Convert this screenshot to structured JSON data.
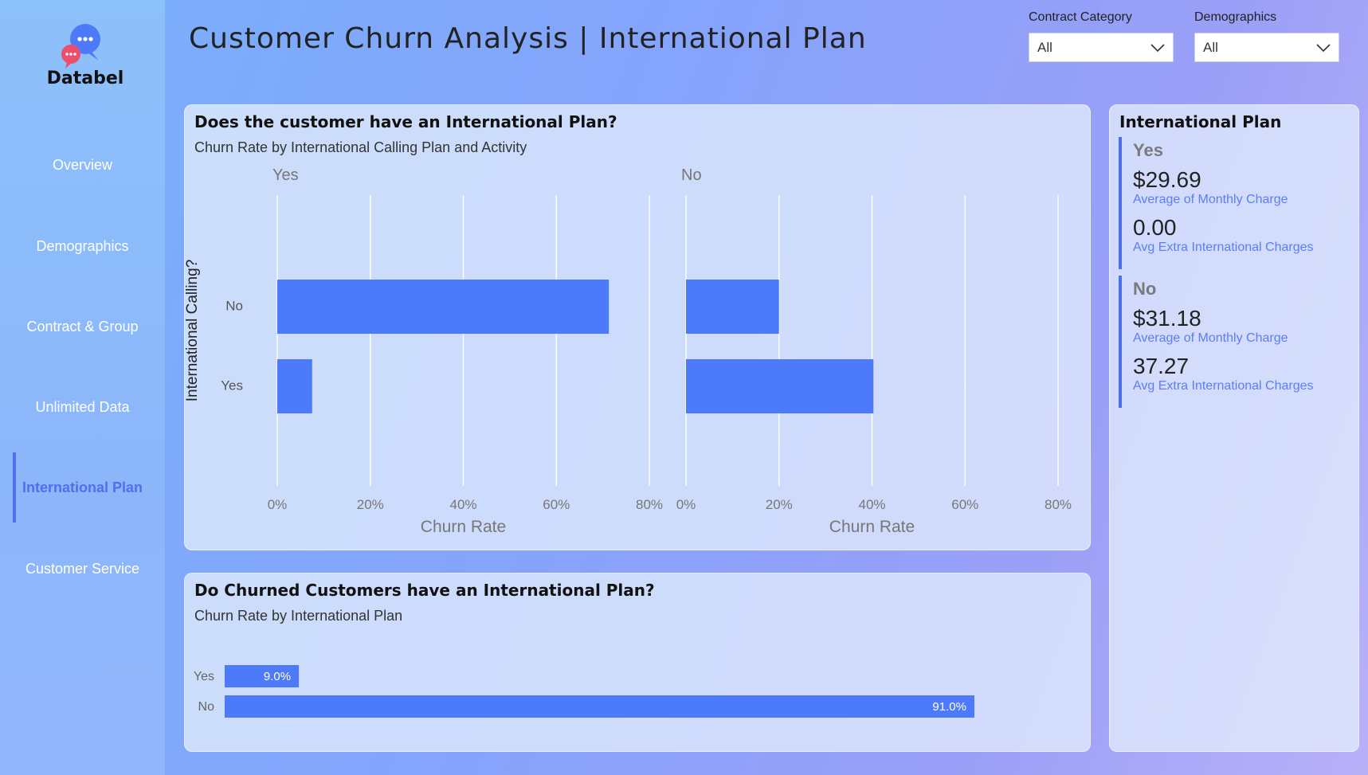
{
  "brand": {
    "name": "Databel"
  },
  "nav": {
    "items": [
      {
        "label": "Overview"
      },
      {
        "label": "Demographics"
      },
      {
        "label": "Contract & Group"
      },
      {
        "label": "Unlimited Data"
      },
      {
        "label": "International Plan",
        "active": true
      },
      {
        "label": "Customer Service"
      }
    ]
  },
  "header": {
    "title": "Customer Churn Analysis | International Plan"
  },
  "filters": {
    "contract": {
      "label": "Contract Category",
      "value": "All"
    },
    "demographics": {
      "label": "Demographics",
      "value": "All"
    }
  },
  "chart1": {
    "title": "Does the customer have an International Plan?",
    "subtitle": "Churn Rate by International Calling Plan and Activity"
  },
  "chart2": {
    "title": "Do Churned Customers have an International Plan?",
    "subtitle": "Churn Rate by International Plan"
  },
  "kpi": {
    "title": "International Plan",
    "groups": [
      {
        "name": "Yes",
        "avg_monthly": "$29.69",
        "avg_monthly_label": "Average of Monthly Charge",
        "avg_intl": "0.00",
        "avg_intl_label": "Avg Extra International Charges"
      },
      {
        "name": "No",
        "avg_monthly": "$31.18",
        "avg_monthly_label": "Average of Monthly Charge",
        "avg_intl": "37.27",
        "avg_intl_label": "Avg Extra International Charges"
      }
    ]
  },
  "colors": {
    "accent": "#4f6fef",
    "bar": "#4d7af8"
  },
  "chart_data": [
    {
      "type": "bar",
      "orientation": "horizontal",
      "title": "Does the customer have an International Plan?",
      "subtitle": "Churn Rate by International Calling Plan and Activity",
      "ylabel": "International Calling?",
      "xlabel": "Churn Rate",
      "categories": [
        "No",
        "Yes"
      ],
      "xlim": [
        0,
        80
      ],
      "xticks": [
        "0%",
        "20%",
        "40%",
        "60%",
        "80%"
      ],
      "grid": true,
      "panels": [
        {
          "name": "Yes",
          "values": [
            71.3,
            7.5
          ]
        },
        {
          "name": "No",
          "values": [
            20.0,
            40.3
          ]
        }
      ]
    },
    {
      "type": "bar",
      "orientation": "horizontal",
      "title": "Do Churned Customers have an International Plan?",
      "subtitle": "Churn Rate by International Plan",
      "categories": [
        "Yes",
        "No"
      ],
      "values": [
        9.0,
        91.0
      ],
      "data_labels": [
        "9.0%",
        "91.0%"
      ],
      "xlim": [
        0,
        100
      ]
    }
  ]
}
